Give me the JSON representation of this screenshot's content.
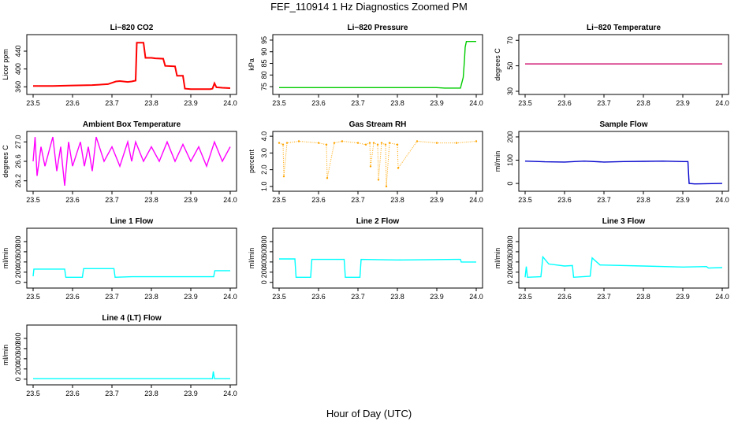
{
  "title": "FEF_110914  1 Hz Diagnostics Zoomed PM",
  "xlabel": "Hour of Day (UTC)",
  "colors": {
    "co2": "#ff0000",
    "pressure": "#00cc00",
    "li_temp": "#cc0066",
    "box_temp": "#ff00ff",
    "rh": "#ffa500",
    "sample_flow": "#0000cc",
    "line_flow": "#00ffff",
    "axis": "#000000"
  },
  "chart_data": [
    {
      "type": "line",
      "title": "Li−820 CO2",
      "ylabel": "Licor ppm",
      "color": "#ff0000",
      "xlim": [
        23.5,
        24.0
      ],
      "ylim": [
        350,
        470
      ],
      "xticks": [
        "23.5",
        "23.6",
        "23.7",
        "23.8",
        "23.9",
        "24.0"
      ],
      "yticks": [
        "360",
        "400",
        "440"
      ],
      "x": [
        23.5,
        23.55,
        23.6,
        23.65,
        23.69,
        23.71,
        23.72,
        23.74,
        23.75,
        23.76,
        23.763,
        23.78,
        23.785,
        23.8,
        23.81,
        23.83,
        23.835,
        23.86,
        23.865,
        23.88,
        23.885,
        23.9,
        23.92,
        23.94,
        23.95,
        23.955,
        23.96,
        23.965,
        23.98,
        24.0
      ],
      "y": [
        362,
        362,
        363,
        364,
        366,
        372,
        373,
        371,
        372,
        374,
        459,
        459,
        425,
        425,
        424,
        423,
        407,
        406,
        385,
        385,
        356,
        355,
        355,
        355,
        355,
        356,
        368,
        359,
        358,
        357
      ]
    },
    {
      "type": "line",
      "title": "Li−820 Pressure",
      "ylabel": "kPa",
      "color": "#00cc00",
      "xlim": [
        23.5,
        24.0
      ],
      "ylim": [
        73,
        96
      ],
      "xticks": [
        "23.5",
        "23.6",
        "23.7",
        "23.8",
        "23.9",
        "24.0"
      ],
      "yticks": [
        "75",
        "80",
        "85",
        "90",
        "95"
      ],
      "x": [
        23.5,
        23.7,
        23.9,
        23.92,
        23.96,
        23.967,
        23.97,
        23.972,
        23.975,
        24.0
      ],
      "y": [
        74.6,
        74.6,
        74.6,
        74.4,
        74.4,
        79,
        86,
        92,
        94.4,
        94.4
      ]
    },
    {
      "type": "line",
      "title": "Li−820 Temperature",
      "ylabel": "degrees C",
      "color": "#cc0066",
      "xlim": [
        23.5,
        24.0
      ],
      "ylim": [
        30,
        72
      ],
      "xticks": [
        "23.5",
        "23.6",
        "23.7",
        "23.8",
        "23.9",
        "24.0"
      ],
      "yticks": [
        "30",
        "50",
        "70"
      ],
      "x": [
        23.5,
        24.0
      ],
      "y": [
        51.5,
        51.5
      ]
    },
    {
      "type": "line",
      "title": "Ambient Box Temperature",
      "ylabel": "degrees C",
      "color": "#ff00ff",
      "xlim": [
        23.5,
        24.0
      ],
      "ylim": [
        26.05,
        27.15
      ],
      "xticks": [
        "23.5",
        "23.6",
        "23.7",
        "23.8",
        "23.9",
        "24.0"
      ],
      "yticks": [
        "26.2",
        "26.6",
        "27.0"
      ],
      "x": [
        23.5,
        23.505,
        23.51,
        23.52,
        23.53,
        23.55,
        23.56,
        23.57,
        23.58,
        23.59,
        23.6,
        23.62,
        23.63,
        23.64,
        23.65,
        23.66,
        23.68,
        23.7,
        23.72,
        23.74,
        23.75,
        23.76,
        23.78,
        23.8,
        23.82,
        23.84,
        23.86,
        23.88,
        23.9,
        23.92,
        23.94,
        23.96,
        23.98,
        24.0
      ],
      "y": [
        26.6,
        27.1,
        26.3,
        26.9,
        26.5,
        27.1,
        26.4,
        26.9,
        26.1,
        27.0,
        26.5,
        27.0,
        26.5,
        26.9,
        26.4,
        27.1,
        26.6,
        26.9,
        26.5,
        27.0,
        26.6,
        27.0,
        26.6,
        26.9,
        26.6,
        27.0,
        26.6,
        26.95,
        26.6,
        26.9,
        26.5,
        27.0,
        26.6,
        26.9
      ]
    },
    {
      "type": "scatter",
      "title": "Gas Stream RH",
      "ylabel": "percent",
      "color": "#ffa500",
      "xlim": [
        23.5,
        24.0
      ],
      "ylim": [
        0.9,
        4.1
      ],
      "xticks": [
        "23.5",
        "23.6",
        "23.7",
        "23.8",
        "23.9",
        "24.0"
      ],
      "yticks": [
        "1.0",
        "2.0",
        "3.0",
        "4.0"
      ],
      "x": [
        23.5,
        23.51,
        23.512,
        23.52,
        23.55,
        23.6,
        23.62,
        23.622,
        23.64,
        23.66,
        23.7,
        23.72,
        23.73,
        23.732,
        23.74,
        23.75,
        23.752,
        23.76,
        23.77,
        23.772,
        23.78,
        23.8,
        23.802,
        23.85,
        23.9,
        23.95,
        24.0
      ],
      "y": [
        3.6,
        3.5,
        1.6,
        3.6,
        3.7,
        3.6,
        3.5,
        1.5,
        3.6,
        3.7,
        3.6,
        3.5,
        3.6,
        2.2,
        3.6,
        3.5,
        1.4,
        3.6,
        3.5,
        1.0,
        3.6,
        3.5,
        2.1,
        3.7,
        3.6,
        3.6,
        3.7
      ]
    },
    {
      "type": "line",
      "title": "Sample Flow",
      "ylabel": "ml/min",
      "color": "#0000cc",
      "xlim": [
        23.5,
        24.0
      ],
      "ylim": [
        -20,
        210
      ],
      "xticks": [
        "23.5",
        "23.6",
        "23.7",
        "23.8",
        "23.9",
        "24.0"
      ],
      "yticks": [
        "0",
        "100",
        "200"
      ],
      "x": [
        23.5,
        23.55,
        23.6,
        23.65,
        23.7,
        23.75,
        23.8,
        23.85,
        23.9,
        23.913,
        23.916,
        23.93,
        24.0
      ],
      "y": [
        96,
        93,
        92,
        96,
        92,
        94,
        95,
        96,
        94,
        94,
        0,
        -2,
        0
      ]
    },
    {
      "type": "line",
      "title": "Line 1 Flow",
      "ylabel": "ml/min",
      "color": "#00ffff",
      "xlim": [
        23.5,
        24.0
      ],
      "ylim": [
        -50,
        1000
      ],
      "xticks": [
        "23.5",
        "23.6",
        "23.7",
        "23.8",
        "23.9",
        "24.0"
      ],
      "yticks": [
        "0",
        "200",
        "400",
        "600",
        "800"
      ],
      "x": [
        23.5,
        23.502,
        23.51,
        23.58,
        23.583,
        23.625,
        23.628,
        23.705,
        23.708,
        23.75,
        23.958,
        23.961,
        24.0
      ],
      "y": [
        120,
        260,
        260,
        260,
        100,
        100,
        270,
        270,
        100,
        110,
        110,
        230,
        230
      ]
    },
    {
      "type": "line",
      "title": "Line 2 Flow",
      "ylabel": "ml/min",
      "color": "#00ffff",
      "xlim": [
        23.5,
        24.0
      ],
      "ylim": [
        -50,
        1000
      ],
      "xticks": [
        "23.5",
        "23.6",
        "23.7",
        "23.8",
        "23.9",
        "24.0"
      ],
      "yticks": [
        "0",
        "200",
        "400",
        "600",
        "800"
      ],
      "x": [
        23.5,
        23.54,
        23.543,
        23.58,
        23.583,
        23.665,
        23.668,
        23.705,
        23.708,
        23.8,
        23.95,
        23.96,
        23.962,
        24.0
      ],
      "y": [
        460,
        460,
        100,
        100,
        450,
        450,
        100,
        100,
        450,
        440,
        450,
        450,
        400,
        400
      ]
    },
    {
      "type": "line",
      "title": "Line 3 Flow",
      "ylabel": "ml/min",
      "color": "#00ffff",
      "xlim": [
        23.5,
        24.0
      ],
      "ylim": [
        -50,
        1000
      ],
      "xticks": [
        "23.5",
        "23.6",
        "23.7",
        "23.8",
        "23.9",
        "24.0"
      ],
      "yticks": [
        "0",
        "200",
        "400",
        "600",
        "800"
      ],
      "x": [
        23.5,
        23.503,
        23.506,
        23.54,
        23.545,
        23.56,
        23.6,
        23.62,
        23.623,
        23.665,
        23.67,
        23.69,
        23.8,
        23.9,
        23.96,
        23.965,
        24.0
      ],
      "y": [
        100,
        310,
        100,
        110,
        500,
        360,
        320,
        330,
        100,
        120,
        480,
        340,
        320,
        300,
        310,
        280,
        290
      ]
    },
    {
      "type": "line",
      "title": "Line 4 (LT) Flow",
      "ylabel": "ml/min",
      "color": "#00ffff",
      "xlim": [
        23.5,
        24.0
      ],
      "ylim": [
        -50,
        1000
      ],
      "xticks": [
        "23.5",
        "23.6",
        "23.7",
        "23.8",
        "23.9",
        "24.0"
      ],
      "yticks": [
        "0",
        "200",
        "400",
        "600",
        "800"
      ],
      "x": [
        23.5,
        23.7,
        23.955,
        23.957,
        23.96,
        23.962,
        24.0
      ],
      "y": [
        10,
        10,
        10,
        150,
        10,
        10,
        10
      ]
    }
  ]
}
